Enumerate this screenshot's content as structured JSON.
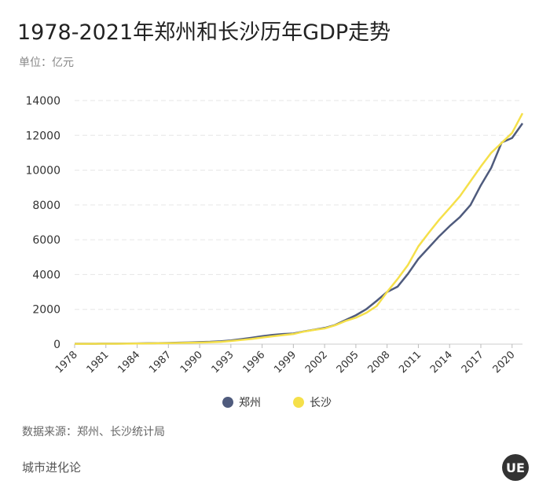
{
  "chart_data": {
    "type": "line",
    "title": "1978-2021年郑州和长沙历年GDP走势",
    "subtitle": "单位：亿元",
    "x": [
      1978,
      1979,
      1980,
      1981,
      1982,
      1983,
      1984,
      1985,
      1986,
      1987,
      1988,
      1989,
      1990,
      1991,
      1992,
      1993,
      1994,
      1995,
      1996,
      1997,
      1998,
      1999,
      2000,
      2001,
      2002,
      2003,
      2004,
      2005,
      2006,
      2007,
      2008,
      2009,
      2010,
      2011,
      2012,
      2013,
      2014,
      2015,
      2016,
      2017,
      2018,
      2019,
      2020,
      2021
    ],
    "series": [
      {
        "name": "郑州",
        "color": "#4f5b7d",
        "values": [
          20,
          22,
          25,
          27,
          29,
          33,
          40,
          50,
          57,
          67,
          83,
          95,
          116,
          134,
          166,
          217,
          290,
          370,
          455,
          530,
          580,
          610,
          730,
          830,
          930,
          1100,
          1380,
          1660,
          2010,
          2490,
          3000,
          3300,
          4040,
          4900,
          5550,
          6200,
          6780,
          7310,
          7990,
          9130,
          10140,
          11590,
          11850,
          12690
        ]
      },
      {
        "name": "长沙",
        "color": "#f5e04a",
        "values": [
          16,
          18,
          20,
          22,
          24,
          28,
          34,
          42,
          50,
          58,
          70,
          80,
          90,
          105,
          130,
          180,
          240,
          300,
          380,
          450,
          520,
          580,
          720,
          820,
          900,
          1080,
          1330,
          1520,
          1800,
          2190,
          3000,
          3740,
          4550,
          5620,
          6400,
          7150,
          7820,
          8510,
          9360,
          10210,
          11000,
          11570,
          12140,
          13270
        ]
      }
    ],
    "xlim": [
      1978,
      2021
    ],
    "xticks": [
      1978,
      1981,
      1984,
      1987,
      1990,
      1993,
      1996,
      1999,
      2002,
      2005,
      2008,
      2011,
      2014,
      2017,
      2020
    ],
    "ylim": [
      0,
      14000
    ],
    "yticks": [
      0,
      2000,
      4000,
      6000,
      8000,
      10000,
      12000,
      14000
    ],
    "grid": true,
    "legend": "bottom",
    "source": "数据来源：郑州、长沙统计局",
    "footer": "城市进化论",
    "logo": "UE"
  }
}
